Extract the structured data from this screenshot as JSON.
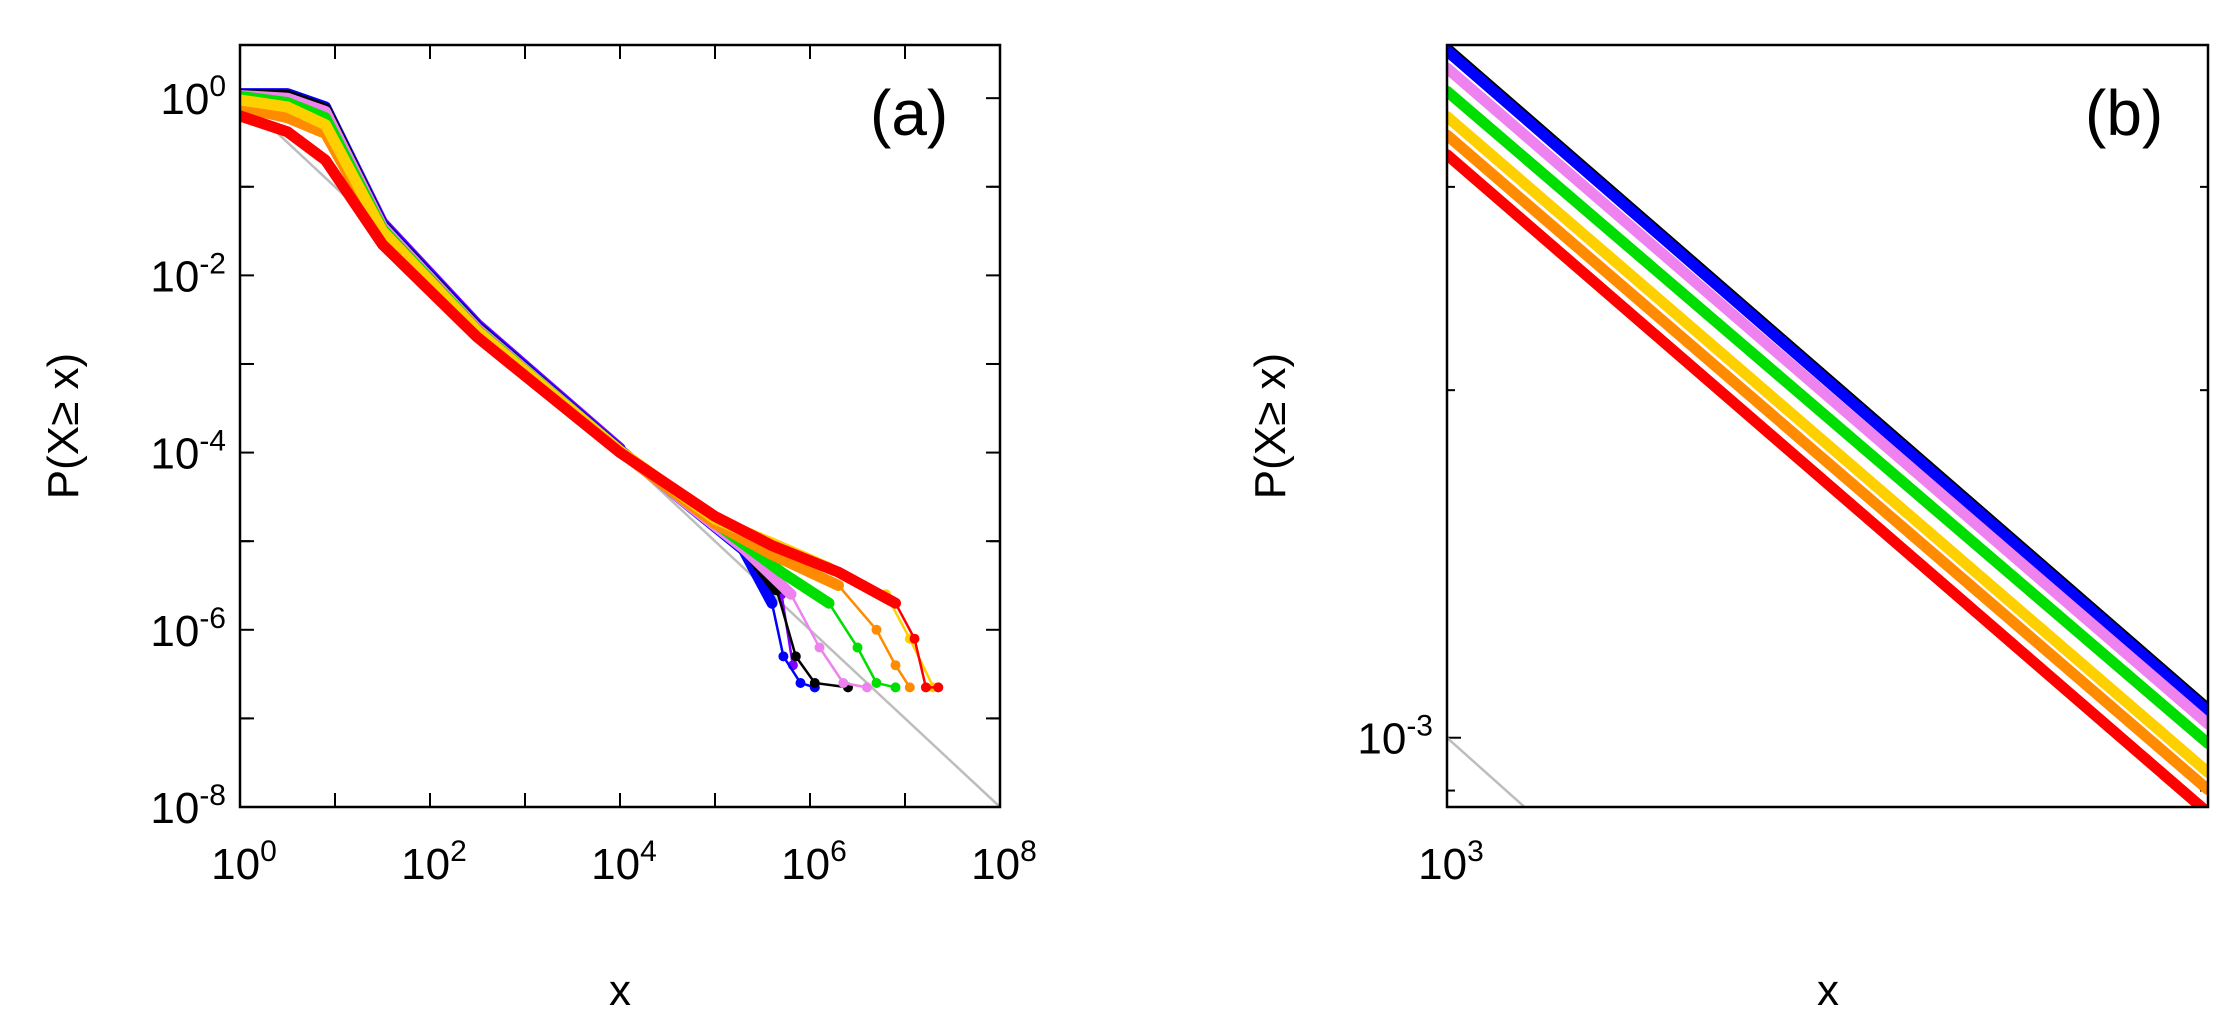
{
  "chart_data": [
    {
      "type": "line",
      "panel_label": "(a)",
      "xlabel": "x",
      "ylabel": "P(X≥ x)",
      "xscale": "log",
      "yscale": "log",
      "xlim_log10": [
        0,
        8
      ],
      "ylim_log10": [
        -8,
        0.6
      ],
      "xticks": [
        {
          "base": "10",
          "exp": "0"
        },
        {
          "base": "10",
          "exp": "2"
        },
        {
          "base": "10",
          "exp": "4"
        },
        {
          "base": "10",
          "exp": "6"
        },
        {
          "base": "10",
          "exp": "8"
        }
      ],
      "yticks": [
        {
          "base": "10",
          "exp": "0"
        },
        {
          "base": "10",
          "exp": "-2"
        },
        {
          "base": "10",
          "exp": "-4"
        },
        {
          "base": "10",
          "exp": "-6"
        },
        {
          "base": "10",
          "exp": "-8"
        }
      ],
      "reference_line": {
        "name": "power-law guide",
        "color": "#bdbdbd",
        "log_points": [
          [
            0,
            0
          ],
          [
            8,
            -8
          ]
        ]
      },
      "series": [
        {
          "name": "purple",
          "color": "#7f00ff",
          "log_points": [
            [
              0,
              0.05
            ],
            [
              0.5,
              0.05
            ],
            [
              0.9,
              -0.1
            ],
            [
              1.5,
              -1.4
            ],
            [
              2.5,
              -2.55
            ],
            [
              4,
              -3.95
            ],
            [
              5.3,
              -5.05
            ],
            [
              5.7,
              -5.6
            ],
            [
              5.82,
              -6.4
            ]
          ]
        },
        {
          "name": "blue",
          "color": "#0000ff",
          "log_points": [
            [
              0,
              0.05
            ],
            [
              0.5,
              0.05
            ],
            [
              0.9,
              -0.1
            ],
            [
              1.5,
              -1.42
            ],
            [
              2.5,
              -2.57
            ],
            [
              4,
              -3.97
            ],
            [
              5.3,
              -5.1
            ],
            [
              5.6,
              -5.7
            ],
            [
              5.72,
              -6.3
            ],
            [
              5.9,
              -6.6
            ],
            [
              6.05,
              -6.65
            ]
          ]
        },
        {
          "name": "black",
          "color": "#000000",
          "log_points": [
            [
              0,
              0.04
            ],
            [
              0.5,
              0.03
            ],
            [
              0.9,
              -0.12
            ],
            [
              1.5,
              -1.44
            ],
            [
              2.5,
              -2.59
            ],
            [
              4,
              -3.98
            ],
            [
              5.3,
              -5.05
            ],
            [
              5.65,
              -5.55
            ],
            [
              5.85,
              -6.3
            ],
            [
              6.05,
              -6.6
            ],
            [
              6.4,
              -6.65
            ]
          ]
        },
        {
          "name": "violet",
          "color": "#ee82ee",
          "log_points": [
            [
              0,
              0.03
            ],
            [
              0.5,
              0.0
            ],
            [
              0.9,
              -0.15
            ],
            [
              1.5,
              -1.45
            ],
            [
              2.5,
              -2.6
            ],
            [
              4,
              -3.98
            ],
            [
              5.3,
              -5.08
            ],
            [
              5.8,
              -5.6
            ],
            [
              6.1,
              -6.2
            ],
            [
              6.35,
              -6.6
            ],
            [
              6.6,
              -6.65
            ]
          ]
        },
        {
          "name": "green",
          "color": "#00dd00",
          "log_points": [
            [
              0,
              0.02
            ],
            [
              0.5,
              -0.05
            ],
            [
              0.9,
              -0.22
            ],
            [
              1.5,
              -1.48
            ],
            [
              2.5,
              -2.62
            ],
            [
              4,
              -3.98
            ],
            [
              5.2,
              -4.95
            ],
            [
              5.7,
              -5.35
            ],
            [
              6.2,
              -5.7
            ],
            [
              6.5,
              -6.2
            ],
            [
              6.7,
              -6.6
            ],
            [
              6.9,
              -6.65
            ]
          ]
        },
        {
          "name": "orange",
          "color": "#ff8c00",
          "log_points": [
            [
              0,
              -0.1
            ],
            [
              0.5,
              -0.22
            ],
            [
              0.9,
              -0.4
            ],
            [
              1.5,
              -1.55
            ],
            [
              2.5,
              -2.66
            ],
            [
              4,
              -3.99
            ],
            [
              5.0,
              -4.8
            ],
            [
              5.6,
              -5.15
            ],
            [
              6.3,
              -5.5
            ],
            [
              6.7,
              -6.0
            ],
            [
              6.9,
              -6.4
            ],
            [
              7.05,
              -6.65
            ]
          ]
        },
        {
          "name": "gold",
          "color": "#ffd000",
          "log_points": [
            [
              0,
              -0.02
            ],
            [
              0.5,
              -0.1
            ],
            [
              0.9,
              -0.3
            ],
            [
              1.5,
              -1.5
            ],
            [
              2.5,
              -2.63
            ],
            [
              4,
              -3.98
            ],
            [
              5.0,
              -4.75
            ],
            [
              5.6,
              -5.02
            ],
            [
              6.2,
              -5.3
            ],
            [
              6.8,
              -5.6
            ],
            [
              7.05,
              -6.1
            ],
            [
              7.3,
              -6.65
            ]
          ]
        },
        {
          "name": "red",
          "color": "#ff0000",
          "log_points": [
            [
              0,
              -0.2
            ],
            [
              0.5,
              -0.38
            ],
            [
              0.9,
              -0.7
            ],
            [
              1.5,
              -1.65
            ],
            [
              2.5,
              -2.7
            ],
            [
              4,
              -4.0
            ],
            [
              5.0,
              -4.72
            ],
            [
              5.6,
              -5.05
            ],
            [
              6.3,
              -5.35
            ],
            [
              6.9,
              -5.7
            ],
            [
              7.1,
              -6.1
            ],
            [
              7.22,
              -6.65
            ],
            [
              7.35,
              -6.65
            ]
          ]
        }
      ]
    },
    {
      "type": "line",
      "panel_label": "(b)",
      "xlabel": "x",
      "ylabel": "P(X≥ x)",
      "xscale": "log",
      "yscale": "log",
      "xlim_log10": [
        3,
        3.19
      ],
      "ylim_log10": [
        -3.06,
        -2.4
      ],
      "xticks": [
        {
          "base": "10",
          "exp": "3"
        }
      ],
      "yticks": [
        {
          "base": "10",
          "exp": "-3"
        }
      ],
      "reference_line": {
        "name": "power-law guide",
        "color": "#bdbdbd",
        "log_points": [
          [
            3,
            -3
          ],
          [
            3.02,
            -3.062
          ]
        ]
      },
      "series": [
        {
          "name": "black",
          "color": "#000000",
          "log_points": [
            [
              3,
              -2.403
            ],
            [
              3.19,
              -2.975
            ]
          ]
        },
        {
          "name": "blue",
          "color": "#0000ff",
          "log_points": [
            [
              3,
              -2.405
            ],
            [
              3.19,
              -2.977
            ]
          ]
        },
        {
          "name": "violet",
          "color": "#ee82ee",
          "log_points": [
            [
              3,
              -2.42
            ],
            [
              3.19,
              -2.988
            ]
          ]
        },
        {
          "name": "green",
          "color": "#00dd00",
          "log_points": [
            [
              3,
              -2.44
            ],
            [
              3.19,
              -3.005
            ]
          ]
        },
        {
          "name": "gold",
          "color": "#ffd000",
          "log_points": [
            [
              3,
              -2.462
            ],
            [
              3.19,
              -3.03
            ]
          ]
        },
        {
          "name": "orange",
          "color": "#ff8c00",
          "log_points": [
            [
              3,
              -2.478
            ],
            [
              3.19,
              -3.045
            ]
          ]
        },
        {
          "name": "red",
          "color": "#ff0000",
          "log_points": [
            [
              3,
              -2.495
            ],
            [
              3.19,
              -3.065
            ]
          ]
        }
      ]
    }
  ]
}
